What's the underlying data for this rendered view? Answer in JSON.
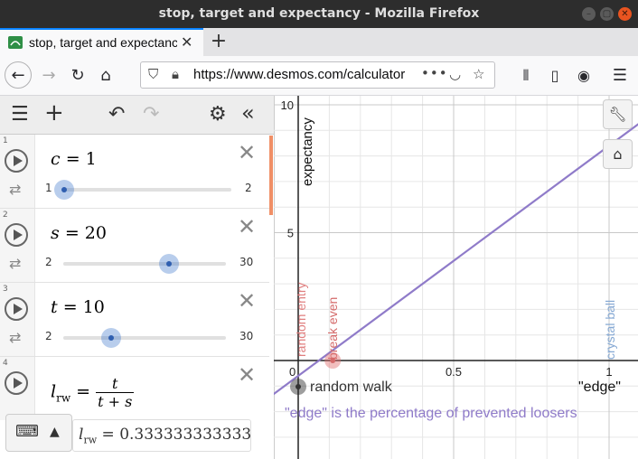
{
  "window": {
    "title": "stop, target and expectancy - Mozilla Firefox",
    "controls": [
      "–",
      "▢",
      "✕"
    ]
  },
  "tab": {
    "title": "stop, target and expectancy",
    "new_tab": "+"
  },
  "nav": {
    "url": "https://www.desmos.com/calculator",
    "back_icon": "←",
    "forward_icon": "→",
    "reload_icon": "↻",
    "home_icon": "⌂",
    "more": "•••"
  },
  "expressions": [
    {
      "num": "1",
      "var": "c",
      "eq": "=",
      "value": "1",
      "min": "1",
      "max": "2",
      "pos": 0.0
    },
    {
      "num": "2",
      "var": "s",
      "eq": "=",
      "value": "20",
      "min": "2",
      "max": "30",
      "pos": 0.643
    },
    {
      "num": "3",
      "var": "t",
      "eq": "=",
      "value": "10",
      "min": "2",
      "max": "30",
      "pos": 0.286
    },
    {
      "num": "4",
      "lhs": "l",
      "lhs_sub": "rw",
      "eq": "=",
      "frac_num": "t",
      "frac_den": "t + s"
    }
  ],
  "evaluation": {
    "lhs": "l",
    "lhs_sub": "rw",
    "eq": "=",
    "value": "0.333333333333"
  },
  "graph": {
    "y_axis_label": "expectancy",
    "x_tick_labels": [
      "0",
      "0.5",
      "1"
    ],
    "y_tick_labels": [
      "5",
      "10"
    ],
    "point_labels": {
      "random_entry": "random entry",
      "break_even": "break even",
      "crystal_ball": "crystal ball",
      "random_walk": "random walk",
      "edge": "\"edge\""
    },
    "note": "\"edge\" is the percentage of prevented loosers",
    "colors": {
      "line": "#8f7bc9",
      "random_entry": "#e07f7f",
      "break_even": "#d46a6a",
      "crystal_ball": "#86a9d4",
      "random_walk": "#333333",
      "note": "#8f7bc9",
      "grid": "#e6e6e6",
      "axis": "#222222"
    },
    "line_fn": {
      "slope": 9.0,
      "intercept": 1.0
    },
    "random_walk_point": {
      "x": 0,
      "y": 0
    },
    "break_even_point": {
      "x": 0.1111,
      "y": 0
    }
  }
}
